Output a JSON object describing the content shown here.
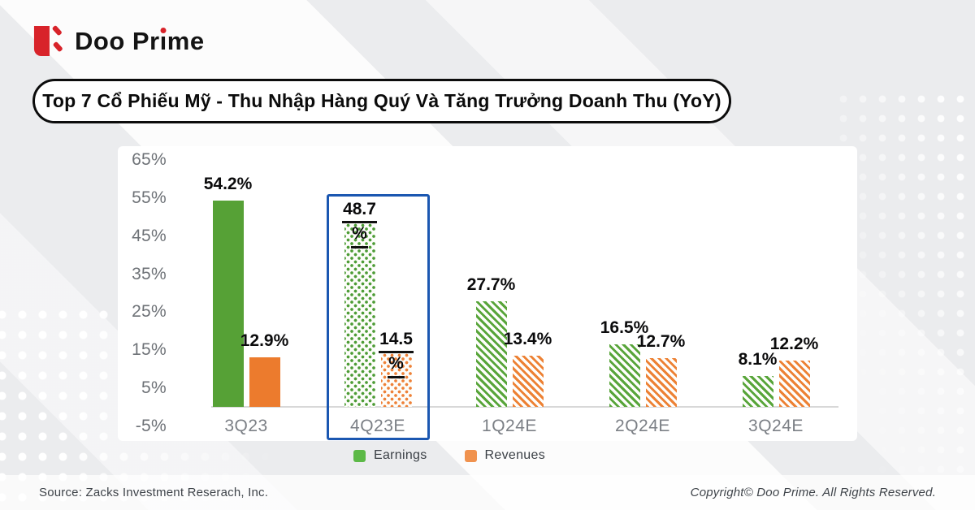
{
  "brand": {
    "name": "Doo Prime",
    "name_parts": {
      "pre": "Doo Pr",
      "i": "ı",
      "post": "me"
    },
    "red": "#d8232a"
  },
  "header": {
    "title": "Top 7 Cổ Phiếu Mỹ - Thu Nhập Hàng Quý Và Tăng Trưởng Doanh Thu (YoY)"
  },
  "footer": {
    "source": "Source: Zacks Investment Reserach, Inc.",
    "copyright": "Copyright© Doo Prime. All Rights Reserved."
  },
  "colors": {
    "earnings_green": "#56a136",
    "revenues_orange": "#ec7b2d",
    "highlight_box_blue": "#1b57b1",
    "axis_gray": "#6e7277"
  },
  "chart_data": {
    "type": "bar",
    "title": "Top 7 Cổ Phiếu Mỹ - Thu Nhập Hàng Quý Và Tăng Trưởng Doanh Thu (YoY)",
    "categories": [
      "3Q23",
      "4Q23E",
      "1Q24E",
      "2Q24E",
      "3Q24E"
    ],
    "series": [
      {
        "name": "Earnings",
        "color": "#56a136",
        "values": [
          54.2,
          48.7,
          27.7,
          16.5,
          8.1
        ]
      },
      {
        "name": "Revenues",
        "color": "#ec7b2d",
        "values": [
          12.9,
          14.5,
          13.4,
          12.7,
          12.2
        ]
      }
    ],
    "bar_patterns_by_category": [
      "solid",
      "dots",
      "hatch",
      "hatch",
      "hatch"
    ],
    "highlighted_category": "4Q23E",
    "y_ticks": [
      "65%",
      "55%",
      "45%",
      "35%",
      "25%",
      "15%",
      "5%",
      "-5%"
    ],
    "y_range": [
      -5,
      65
    ],
    "unit": "%",
    "grid": false,
    "legend": {
      "position": "bottom",
      "items": [
        "Earnings",
        "Revenues"
      ],
      "marker_colors": [
        "#5cb947",
        "#f0924e"
      ]
    }
  }
}
